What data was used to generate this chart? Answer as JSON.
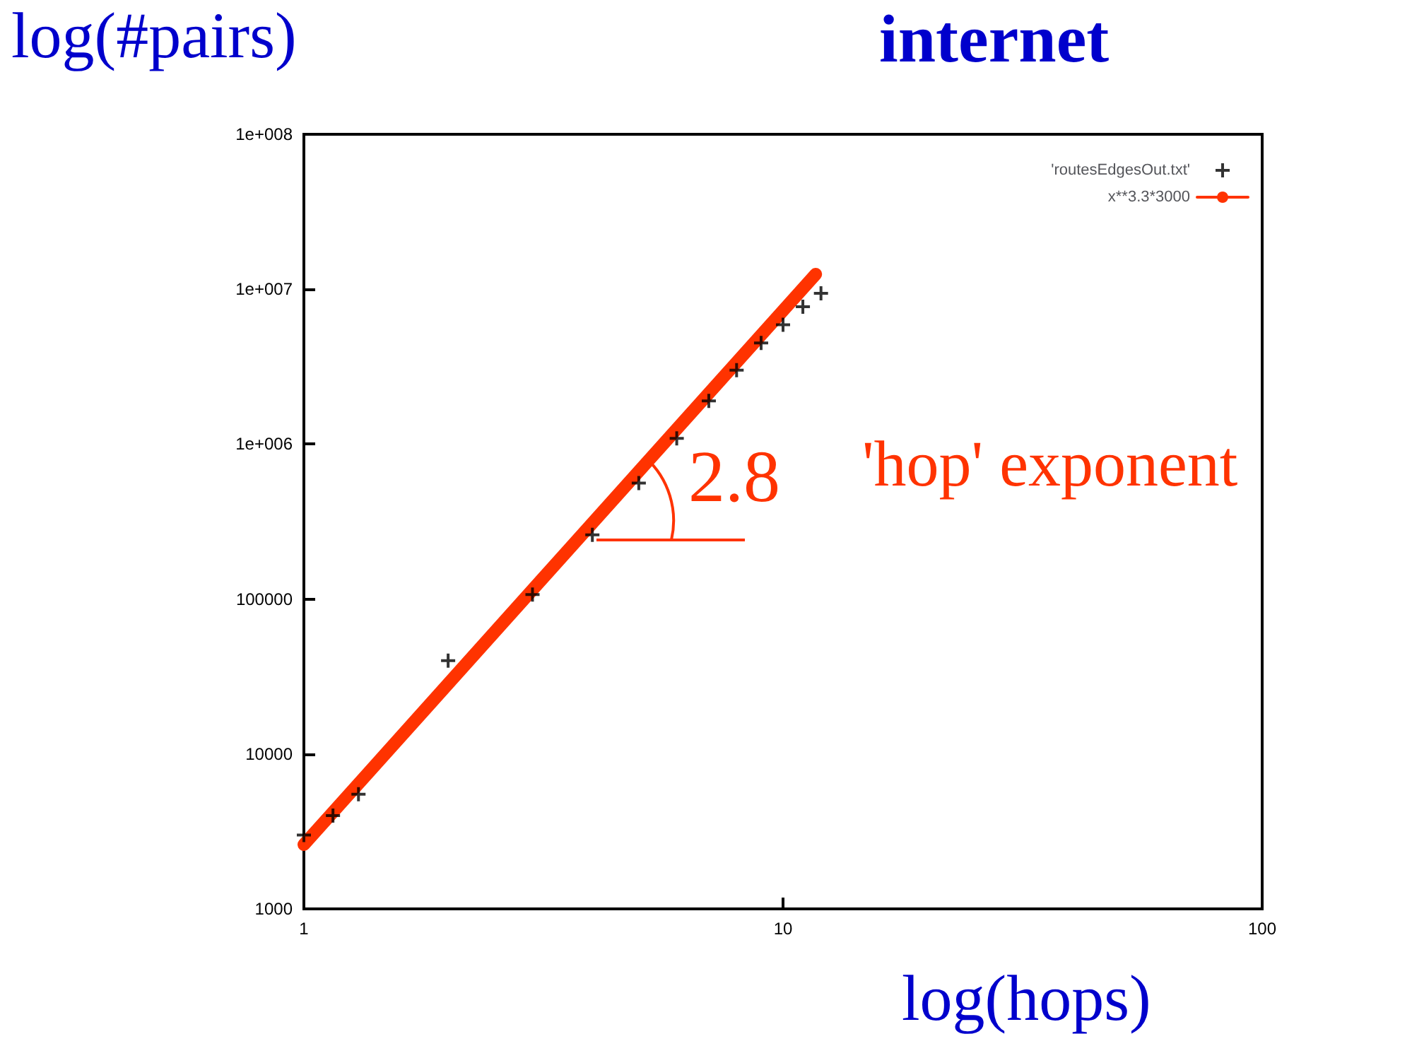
{
  "chart_data": {
    "type": "scatter",
    "title": "internet",
    "xlabel": "log(hops)",
    "ylabel": "log(#pairs)",
    "log": "xy",
    "xlim": [
      1,
      100
    ],
    "ylim": [
      1000,
      100000000
    ],
    "xticks": [
      1,
      10,
      100
    ],
    "yticks": [
      1000,
      10000,
      100000,
      {
        "value": 1000000,
        "label": "1e+006"
      },
      {
        "value": 10000000,
        "label": "1e+007"
      },
      {
        "value": 100000000,
        "label": "1e+008"
      }
    ],
    "legend": "top right",
    "grid": false,
    "series": [
      {
        "name": "'routesEdgesOut.txt'",
        "type": "scatter",
        "marker": "cross",
        "color": "#000000",
        "x": [
          1,
          1.15,
          1.3,
          2,
          3,
          4,
          5,
          6,
          7,
          8,
          9,
          10,
          11,
          12
        ],
        "values": [
          3000,
          4000,
          5500,
          40000,
          107000,
          260000,
          560000,
          1090000,
          1900000,
          3000000,
          4500000,
          5900000,
          7700000,
          9400000
        ]
      },
      {
        "name": "x**3.3*3000",
        "type": "line",
        "marker": "none",
        "line_style": "solid",
        "color": "#ff3300",
        "x": [
          1,
          11.7
        ],
        "values": [
          2600,
          12500000
        ]
      }
    ],
    "annotations": [
      "2.8",
      "'hop' exponent"
    ]
  }
}
